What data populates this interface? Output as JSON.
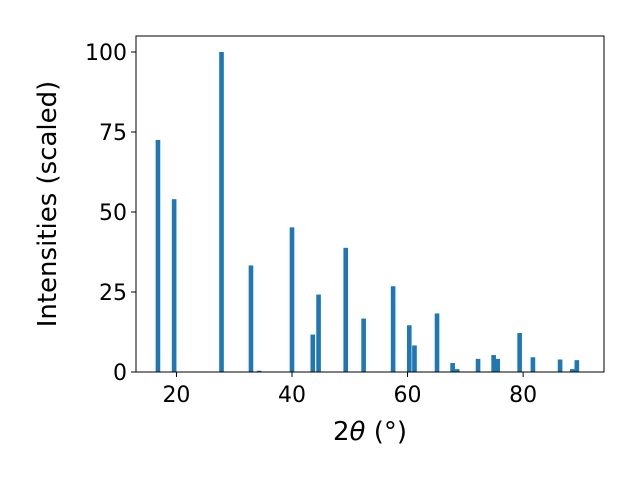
{
  "chart_data": {
    "type": "bar",
    "xlabel_parts": {
      "pre": "2",
      "theta": "θ",
      "post": " (°)"
    },
    "ylabel": "Intensities (scaled)",
    "xlim": [
      13,
      94
    ],
    "ylim": [
      0,
      105
    ],
    "x_ticks": [
      20,
      40,
      60,
      80
    ],
    "y_ticks": [
      0,
      25,
      50,
      75,
      100
    ],
    "bar_width": 0.8,
    "color": "#1f77b4",
    "grid": false,
    "legend": "none",
    "series": [
      {
        "x": [
          16.8,
          19.6,
          27.8,
          32.9,
          34.3,
          40.0,
          43.6,
          44.6,
          49.3,
          52.4,
          57.5,
          60.3,
          61.2,
          65.1,
          67.8,
          68.6,
          72.2,
          74.9,
          75.6,
          79.4,
          81.7,
          86.4,
          88.5,
          89.3
        ],
        "y": [
          72.5,
          54,
          100,
          33.3,
          0.4,
          45.2,
          11.7,
          24.2,
          38.8,
          16.7,
          26.8,
          14.6,
          8.3,
          18.3,
          2.8,
          0.9,
          4.1,
          5.3,
          4.1,
          12.2,
          4.6,
          3.9,
          0.9,
          3.7
        ]
      }
    ]
  }
}
